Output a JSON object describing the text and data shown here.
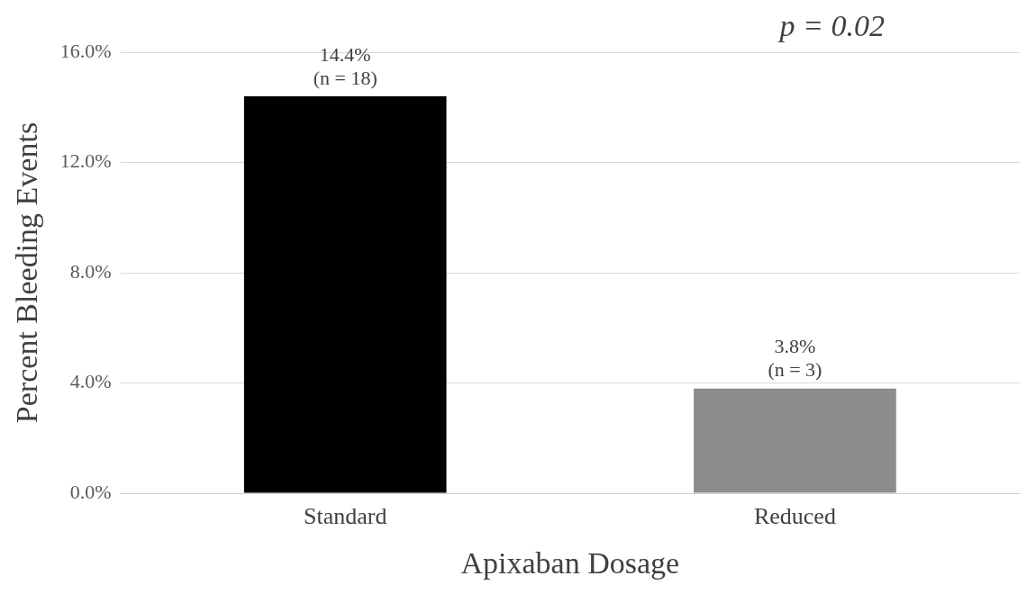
{
  "chart_data": {
    "type": "bar",
    "xlabel": "Apixaban Dosage",
    "ylabel": "Percent Bleeding Events",
    "categories": [
      "Standard",
      "Reduced"
    ],
    "values": [
      14.4,
      3.8
    ],
    "colors": [
      "#000000",
      "#8c8c8c"
    ],
    "value_labels": [
      "14.4%\n(n = 18)",
      "3.8%\n(n = 3)"
    ],
    "ylim": [
      0,
      16
    ],
    "yticks": [
      {
        "value": 0,
        "label": "0.0%"
      },
      {
        "value": 4,
        "label": "4.0%"
      },
      {
        "value": 8,
        "label": "8.0%"
      },
      {
        "value": 12,
        "label": "12.0%"
      },
      {
        "value": 16,
        "label": "16.0%"
      }
    ],
    "grid": "y",
    "legend": false,
    "annotations": [
      "p = 0.02"
    ]
  }
}
